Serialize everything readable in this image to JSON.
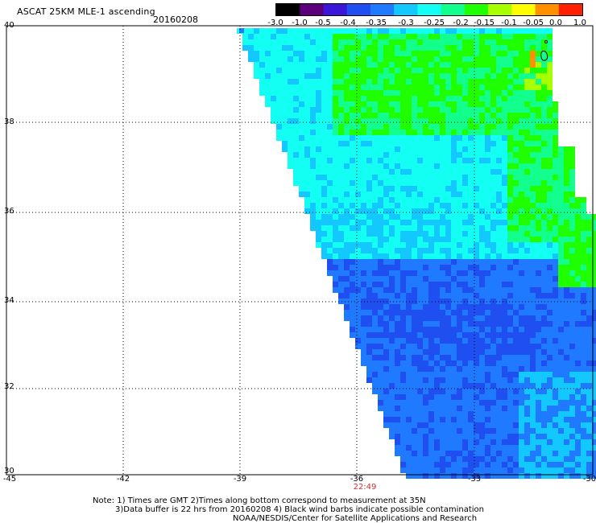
{
  "header": {
    "title": "ASCAT 25KM MLE-1 ascending",
    "date": "20160208"
  },
  "colorbar": {
    "ticks": [
      "-3.0",
      "-1.0",
      "-0.5",
      "-0.4",
      "-0.35",
      "-0.3",
      "-0.25",
      "-0.2",
      "-0.15",
      "-0.1",
      "-0.05",
      "0.0",
      "1.0"
    ],
    "colors": [
      "#000000",
      "#5a007a",
      "#3a16d8",
      "#1f4ff0",
      "#1f7aff",
      "#13c7ff",
      "#13fff3",
      "#12ff8d",
      "#20ff00",
      "#a8ff00",
      "#ffff00",
      "#ff9000",
      "#ff2000"
    ]
  },
  "map": {
    "y_axis_labels": [
      "40",
      "38",
      "36",
      "34",
      "32",
      "30"
    ],
    "x_axis_labels": [
      "-45",
      "-42",
      "-39",
      "-36",
      "-33",
      "-30"
    ],
    "time_label": "22:49",
    "swath_colors": {
      "deep_blue": "#1f4ff0",
      "blue": "#1f7aff",
      "azure": "#13c7ff",
      "cyan": "#13fff3",
      "seafoam": "#12ff8d",
      "green": "#20ff00",
      "lime": "#a8ff00",
      "orange": "#ff9000"
    }
  },
  "footer": {
    "note_line1": "Note: 1) Times are GMT 2)Times along bottom correspond to measurement at 35N",
    "note_line2": "3)Data buffer is 22 hrs from 20160208 4) Black wind barbs indicate possible contamination",
    "note_line3": "NOAA/NESDIS/Center for Satellite Applications and Research"
  }
}
